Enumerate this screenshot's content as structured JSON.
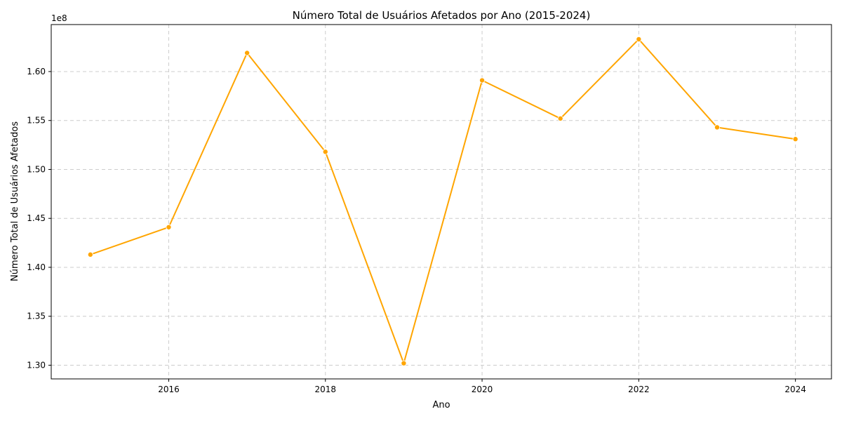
{
  "chart_data": {
    "type": "line",
    "title": "Número Total de Usuários Afetados por Ano (2015-2024)",
    "xlabel": "Ano",
    "ylabel": "Número Total de Usuários Afetados",
    "y_offset_label": "1e8",
    "x": [
      2015,
      2016,
      2017,
      2018,
      2019,
      2020,
      2021,
      2022,
      2023,
      2024
    ],
    "series": [
      {
        "values": [
          141300000,
          144100000,
          161900000,
          151800000,
          130200000,
          159100000,
          155200000,
          163300000,
          154300000,
          153100000
        ],
        "color": "#FFA500"
      }
    ],
    "x_ticks": [
      2016,
      2018,
      2020,
      2022,
      2024
    ],
    "x_tick_labels": [
      "2016",
      "2018",
      "2020",
      "2022",
      "2024"
    ],
    "y_ticks": [
      130000000,
      135000000,
      140000000,
      145000000,
      150000000,
      155000000,
      160000000
    ],
    "y_tick_labels": [
      "1.30",
      "1.35",
      "1.40",
      "1.45",
      "1.50",
      "1.55",
      "1.60"
    ],
    "xlim": [
      2014.5,
      2024.46
    ],
    "ylim": [
      128600000,
      164800000
    ],
    "grid": true,
    "grid_color": "#cccccc"
  }
}
